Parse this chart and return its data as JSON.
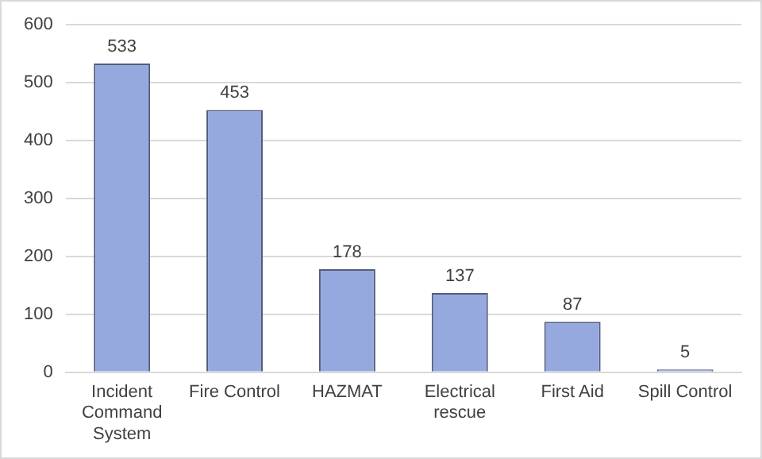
{
  "chart_data": {
    "type": "bar",
    "categories": [
      "Incident Command System",
      "Fire Control",
      "HAZMAT",
      "Electrical rescue",
      "First Aid",
      "Spill Control"
    ],
    "values": [
      533,
      453,
      178,
      137,
      87,
      5
    ],
    "color": "#96a9df",
    "ylim": [
      0,
      600
    ],
    "yticks": [
      0,
      100,
      200,
      300,
      400,
      500,
      600
    ],
    "grid": "y",
    "data_labels": true
  }
}
